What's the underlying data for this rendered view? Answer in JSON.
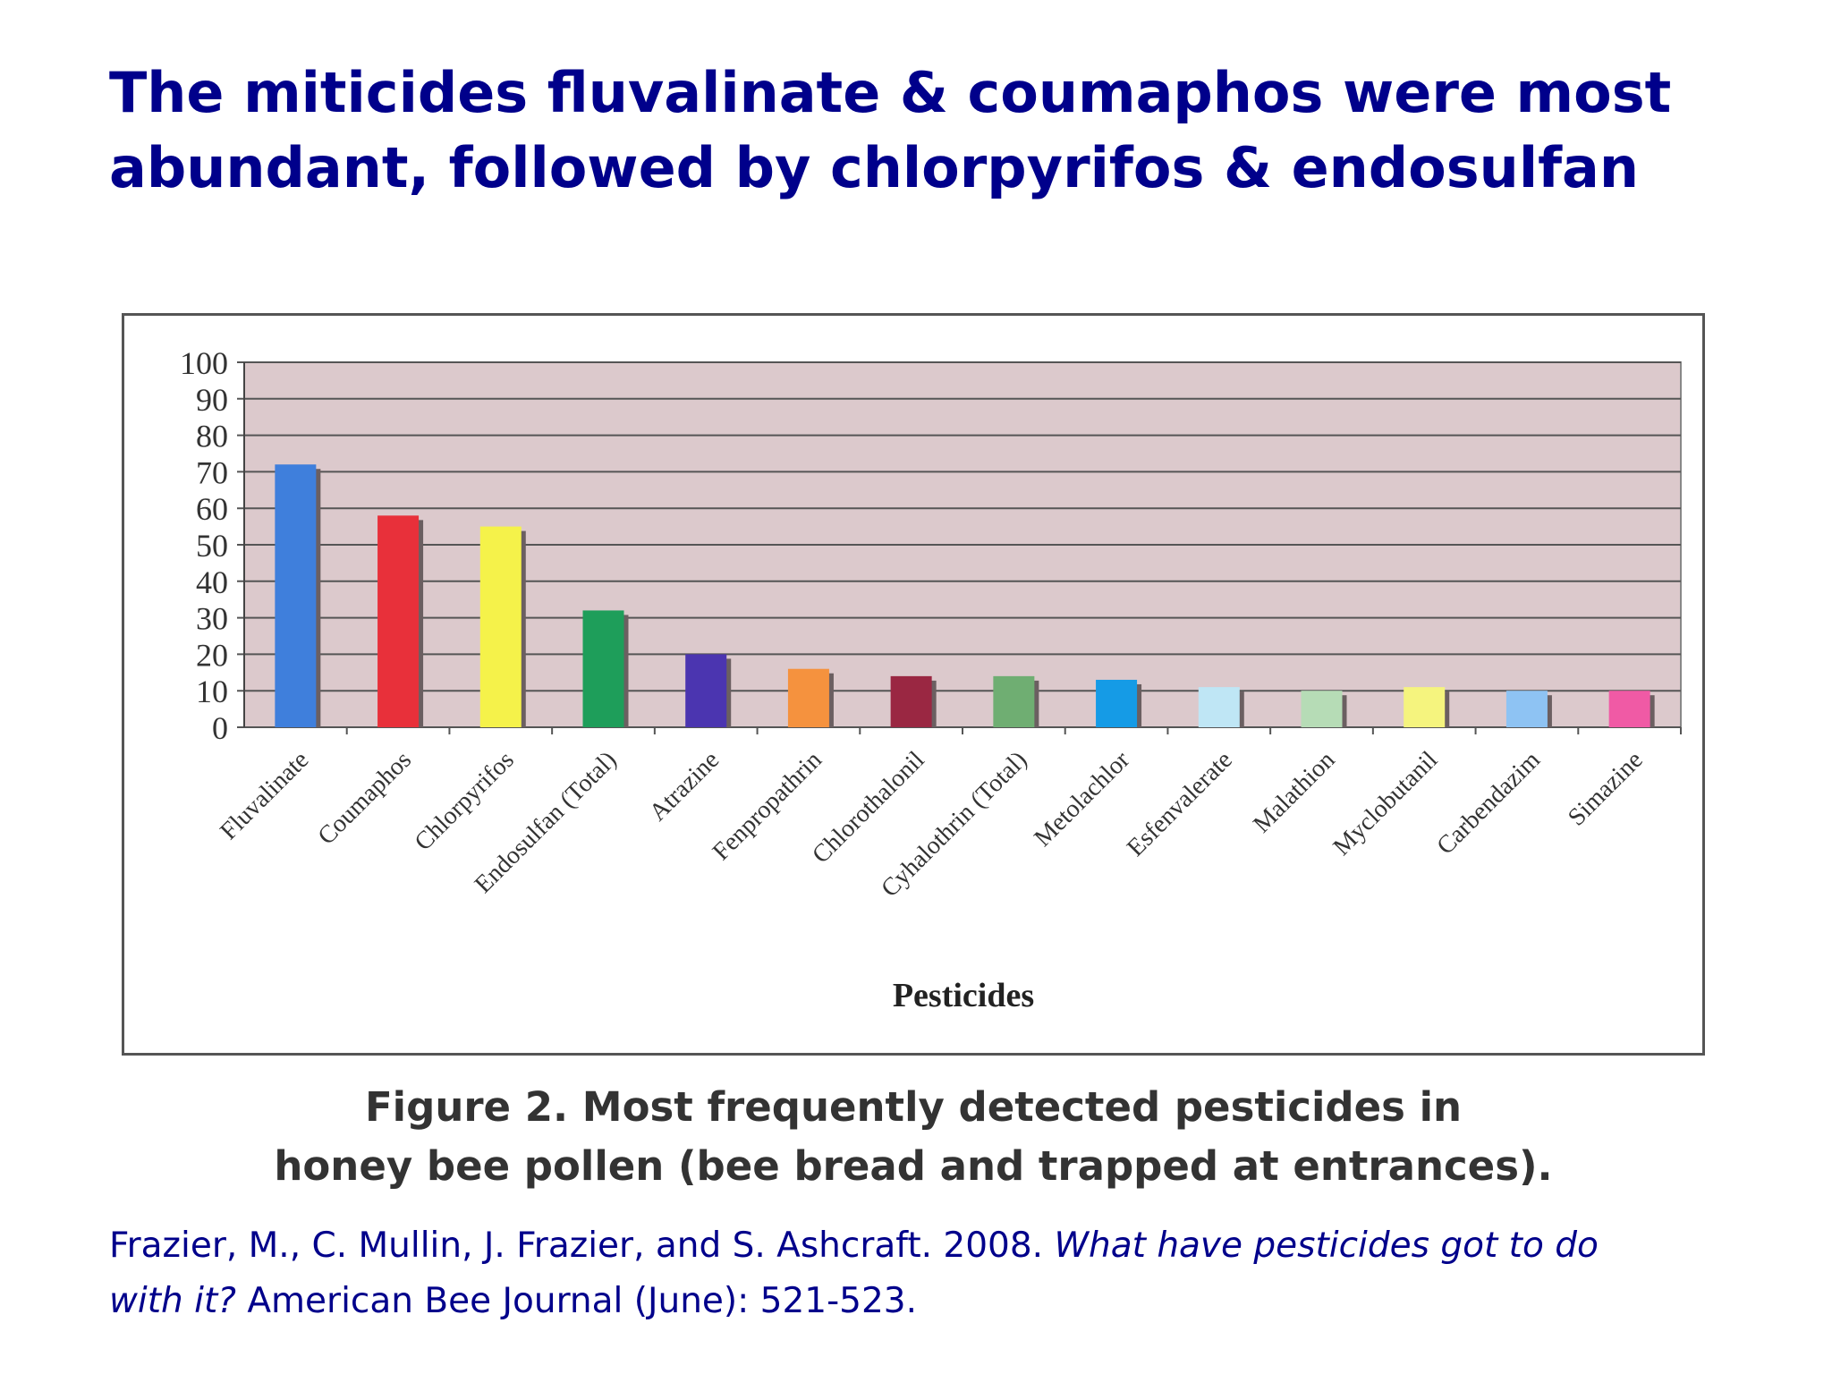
{
  "slide": {
    "title_line1": "The miticides fluvalinate & coumaphos were most",
    "title_line2": "abundant, followed by chlorpyrifos & endosulfan"
  },
  "caption": {
    "line1": "Figure 2. Most frequently detected pesticides in",
    "line2": "honey bee pollen (bee bread and trapped at entrances)."
  },
  "citation": {
    "part1": "Frazier, M., C. Mullin, J. Frazier, and S. Ashcraft. 2008. ",
    "italic1": "What have pesticides got to do",
    "italic2": "with it?",
    "part2": " American Bee Journal (June): 521-523."
  },
  "chart_data": {
    "type": "bar",
    "title": "",
    "xlabel": "Pesticides",
    "ylabel": "",
    "ylim": [
      0,
      100
    ],
    "yticks": [
      "0",
      "10",
      "20",
      "30",
      "40",
      "50",
      "60",
      "70",
      "80",
      "90",
      "100"
    ],
    "grid": true,
    "plot_background": "#dcc9cc",
    "categories": [
      "Fluvalinate",
      "Coumaphos",
      "Chlorpyrifos",
      "Endosulfan (Total)",
      "Atrazine",
      "Fenpropathrin",
      "Chlorothalonil",
      "Cyhalothrin (Total)",
      "Metolachlor",
      "Esfenvalerate",
      "Malathion",
      "Myclobutanil",
      "Carbendazim",
      "Simazine"
    ],
    "values": [
      72,
      58,
      55,
      32,
      20,
      16,
      14,
      14,
      13,
      11,
      10,
      11,
      10,
      10
    ],
    "colors": [
      "#3f7fdc",
      "#e8303a",
      "#f5f24a",
      "#1e9e5a",
      "#4b35b0",
      "#f5923e",
      "#9a2742",
      "#6fae72",
      "#159be6",
      "#bfe6f5",
      "#b6dcb6",
      "#f5f47e",
      "#8ec3f3",
      "#f05aa5"
    ]
  }
}
